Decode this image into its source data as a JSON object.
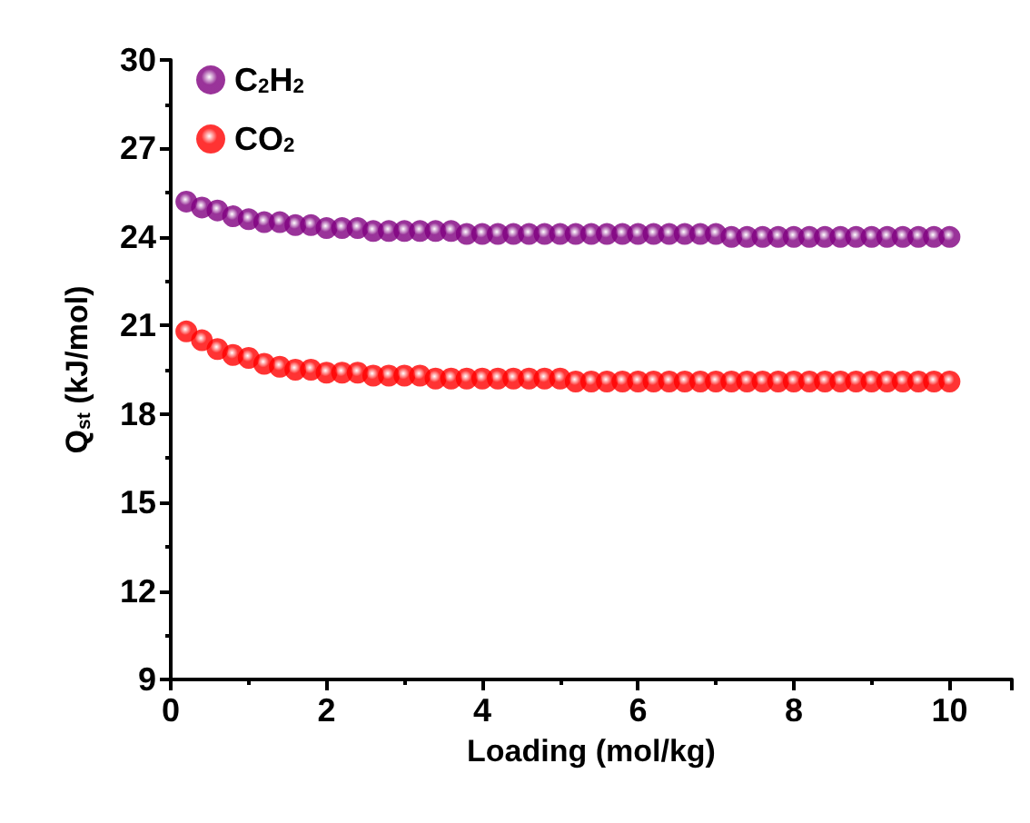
{
  "chart_data": {
    "type": "scatter",
    "xlabel": "Loading (mol/kg)",
    "ylabel": "Q$_{st}$ (kJ/mol)",
    "x": [
      0.2,
      0.4,
      0.6,
      0.8,
      1.0,
      1.2,
      1.4,
      1.6,
      1.8,
      2.0,
      2.2,
      2.4,
      2.6,
      2.8,
      3.0,
      3.2,
      3.4,
      3.6,
      3.8,
      4.0,
      4.2,
      4.4,
      4.6,
      4.8,
      5.0,
      5.2,
      5.4,
      5.6,
      5.8,
      6.0,
      6.2,
      6.4,
      6.6,
      6.8,
      7.0,
      7.2,
      7.4,
      7.6,
      7.8,
      8.0,
      8.2,
      8.4,
      8.6,
      8.8,
      9.0,
      9.2,
      9.4,
      9.6,
      9.8,
      10.0
    ],
    "series": [
      {
        "name": "C$_{2}$H$_{2}$",
        "color": "#800080",
        "values": [
          25.2,
          25.0,
          24.9,
          24.7,
          24.6,
          24.5,
          24.5,
          24.4,
          24.4,
          24.3,
          24.3,
          24.3,
          24.2,
          24.2,
          24.2,
          24.2,
          24.2,
          24.2,
          24.1,
          24.1,
          24.1,
          24.1,
          24.1,
          24.1,
          24.1,
          24.1,
          24.1,
          24.1,
          24.1,
          24.1,
          24.1,
          24.1,
          24.1,
          24.1,
          24.1,
          24.0,
          24.0,
          24.0,
          24.0,
          24.0,
          24.0,
          24.0,
          24.0,
          24.0,
          24.0,
          24.0,
          24.0,
          24.0,
          24.0,
          24.0
        ]
      },
      {
        "name": "CO$_{2}$",
        "color": "#ff0000",
        "values": [
          20.8,
          20.5,
          20.2,
          20.0,
          19.9,
          19.7,
          19.6,
          19.5,
          19.5,
          19.4,
          19.4,
          19.4,
          19.3,
          19.3,
          19.3,
          19.3,
          19.2,
          19.2,
          19.2,
          19.2,
          19.2,
          19.2,
          19.2,
          19.2,
          19.2,
          19.1,
          19.1,
          19.1,
          19.1,
          19.1,
          19.1,
          19.1,
          19.1,
          19.1,
          19.1,
          19.1,
          19.1,
          19.1,
          19.1,
          19.1,
          19.1,
          19.1,
          19.1,
          19.1,
          19.1,
          19.1,
          19.1,
          19.1,
          19.1,
          19.1
        ]
      }
    ],
    "xlim": [
      0,
      10.8
    ],
    "xticks": [
      0,
      2,
      4,
      6,
      8,
      10
    ],
    "ylim": [
      9,
      30
    ],
    "yticks": [
      9,
      12,
      15,
      18,
      21,
      24,
      27,
      30
    ],
    "legend": "top left",
    "marker": "circle",
    "grid": false
  }
}
